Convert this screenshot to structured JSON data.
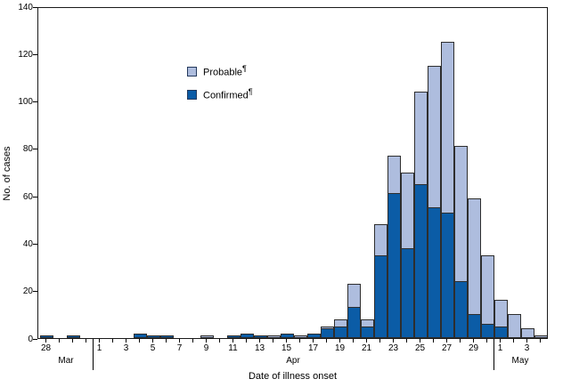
{
  "axes": {
    "y_title": "No. of cases",
    "x_title": "Date of illness onset",
    "y_ticks": [
      0,
      20,
      40,
      60,
      80,
      100,
      120,
      140
    ],
    "months": [
      {
        "label": "Mar",
        "span_start": 0,
        "span_end": 3
      },
      {
        "label": "Apr",
        "span_start": 4,
        "span_end": 33
      },
      {
        "label": "May",
        "span_start": 34,
        "span_end": 37
      }
    ]
  },
  "legend": {
    "items": [
      {
        "label": "Probable",
        "marker": "¶",
        "color": "#aebdde"
      },
      {
        "label": "Confirmed",
        "marker": "¶",
        "color": "#0b5ca6"
      }
    ]
  },
  "colors": {
    "confirmed": "#0b5ca6",
    "probable": "#aebdde",
    "outline": "#2e2e2e",
    "axis": "#1a1a1a"
  },
  "chart_data": {
    "type": "bar",
    "stacked": true,
    "title": "",
    "xlabel": "Date of illness onset",
    "ylabel": "No. of cases",
    "ylim": [
      0,
      140
    ],
    "ytick_step": 20,
    "legend_position": "upper-left-inside",
    "grid": false,
    "categories": [
      "Mar 28",
      "Mar 29",
      "Mar 30",
      "Mar 31",
      "Apr 1",
      "Apr 2",
      "Apr 3",
      "Apr 4",
      "Apr 5",
      "Apr 6",
      "Apr 7",
      "Apr 8",
      "Apr 9",
      "Apr 10",
      "Apr 11",
      "Apr 12",
      "Apr 13",
      "Apr 14",
      "Apr 15",
      "Apr 16",
      "Apr 17",
      "Apr 18",
      "Apr 19",
      "Apr 20",
      "Apr 21",
      "Apr 22",
      "Apr 23",
      "Apr 24",
      "Apr 25",
      "Apr 26",
      "Apr 27",
      "Apr 28",
      "Apr 29",
      "Apr 30",
      "May 1",
      "May 2",
      "May 3",
      "May 4"
    ],
    "tick_labels": [
      "28",
      "",
      "",
      "",
      "1",
      "",
      "3",
      "",
      "5",
      "",
      "7",
      "",
      "9",
      "",
      "11",
      "",
      "13",
      "",
      "15",
      "",
      "17",
      "",
      "19",
      "",
      "21",
      "",
      "23",
      "",
      "25",
      "",
      "27",
      "",
      "29",
      "",
      "1",
      "",
      "3",
      ""
    ],
    "series": [
      {
        "name": "Confirmed",
        "values": [
          1,
          0,
          1,
          0,
          0,
          0,
          0,
          2,
          1,
          1,
          0,
          0,
          0,
          0,
          1,
          2,
          1,
          0,
          2,
          0,
          2,
          4,
          5,
          13,
          5,
          35,
          61,
          38,
          65,
          55,
          53,
          24,
          10,
          6,
          5,
          0,
          0,
          0
        ]
      },
      {
        "name": "Probable",
        "values": [
          0,
          0,
          0,
          0,
          0,
          0,
          0,
          0,
          0,
          0,
          0,
          0,
          1,
          0,
          0,
          0,
          0,
          1,
          0,
          1,
          0,
          1,
          3,
          10,
          3,
          13,
          16,
          32,
          39,
          60,
          72,
          57,
          49,
          29,
          11,
          10,
          4,
          1
        ]
      }
    ]
  }
}
